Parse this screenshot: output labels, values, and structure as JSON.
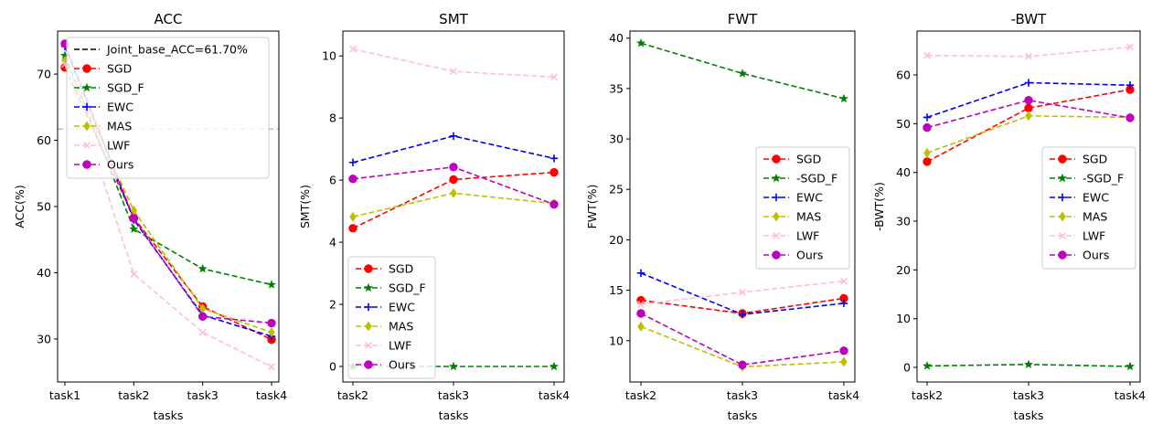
{
  "chart_data": [
    {
      "type": "line",
      "title": "ACC",
      "xlabel": "tasks",
      "ylabel": "ACC(%)",
      "categories": [
        "task1",
        "task2",
        "task3",
        "task4"
      ],
      "ylim": [
        23.5,
        76.5
      ],
      "yticks": [
        30,
        40,
        50,
        60,
        70
      ],
      "grid": false,
      "legend_position": "upper-right",
      "reference_line": {
        "label": "Joint_base_ACC=61.70%",
        "value": 61.7,
        "color": "#bbbbbb",
        "legend_color": "#000000"
      },
      "series": [
        {
          "name": "SGD",
          "color": "#ff0000",
          "marker": "circle",
          "values": [
            71.0,
            48.3,
            34.9,
            29.9
          ]
        },
        {
          "name": "SGD_F",
          "color": "#008000",
          "marker": "star",
          "values": [
            72.8,
            46.6,
            40.6,
            38.2
          ]
        },
        {
          "name": "EWC",
          "color": "#0000ff",
          "marker": "plus",
          "values": [
            74.2,
            48.0,
            33.6,
            30.4
          ]
        },
        {
          "name": "MAS",
          "color": "#bfbf00",
          "marker": "diamond",
          "values": [
            72.0,
            49.4,
            34.6,
            31.0
          ]
        },
        {
          "name": "LWF",
          "color": "#ffc0cb",
          "marker": "x",
          "values": [
            71.5,
            39.8,
            31.0,
            25.8
          ]
        },
        {
          "name": "Ours",
          "color": "#bf00bf",
          "marker": "circle",
          "values": [
            74.6,
            48.2,
            33.4,
            32.4
          ]
        }
      ]
    },
    {
      "type": "line",
      "title": "SMT",
      "xlabel": "tasks",
      "ylabel": "SMT(%)",
      "categories": [
        "task2",
        "task3",
        "task4"
      ],
      "ylim": [
        -0.5,
        10.8
      ],
      "yticks": [
        0,
        2,
        4,
        6,
        8,
        10
      ],
      "grid": false,
      "legend_position": "lower-left",
      "series": [
        {
          "name": "SGD",
          "color": "#ff0000",
          "marker": "circle",
          "values": [
            4.45,
            6.02,
            6.25
          ]
        },
        {
          "name": "SGD_F",
          "color": "#008000",
          "marker": "star",
          "values": [
            0.0,
            0.0,
            0.0
          ]
        },
        {
          "name": "EWC",
          "color": "#0000ff",
          "marker": "plus",
          "values": [
            6.57,
            7.42,
            6.7
          ]
        },
        {
          "name": "MAS",
          "color": "#bfbf00",
          "marker": "diamond",
          "values": [
            4.82,
            5.58,
            5.25
          ]
        },
        {
          "name": "LWF",
          "color": "#ffc0cb",
          "marker": "x",
          "values": [
            10.22,
            9.5,
            9.32
          ]
        },
        {
          "name": "Ours",
          "color": "#bf00bf",
          "marker": "circle",
          "values": [
            6.04,
            6.42,
            5.22
          ]
        }
      ]
    },
    {
      "type": "line",
      "title": "FWT",
      "xlabel": "tasks",
      "ylabel": "FWT(%)",
      "categories": [
        "task2",
        "task3",
        "task4"
      ],
      "ylim": [
        5.9,
        40.7
      ],
      "yticks": [
        10,
        15,
        20,
        25,
        30,
        35,
        40
      ],
      "grid": false,
      "legend_position": "center-right",
      "series": [
        {
          "name": "SGD",
          "color": "#ff0000",
          "marker": "circle",
          "values": [
            14.0,
            12.7,
            14.2
          ]
        },
        {
          "name": "-SGD_F",
          "color": "#008000",
          "marker": "star",
          "values": [
            39.5,
            36.5,
            34.0
          ]
        },
        {
          "name": "EWC",
          "color": "#0000ff",
          "marker": "plus",
          "values": [
            16.7,
            12.6,
            13.7
          ]
        },
        {
          "name": "MAS",
          "color": "#bfbf00",
          "marker": "diamond",
          "values": [
            11.4,
            7.4,
            7.9
          ]
        },
        {
          "name": "LWF",
          "color": "#ffc0cb",
          "marker": "x",
          "values": [
            13.6,
            14.8,
            15.9
          ]
        },
        {
          "name": "Ours",
          "color": "#bf00bf",
          "marker": "circle",
          "values": [
            12.7,
            7.6,
            9.0
          ]
        }
      ]
    },
    {
      "type": "line",
      "title": "-BWT",
      "xlabel": "tasks",
      "ylabel": "-BWT(%)",
      "categories": [
        "task2",
        "task3",
        "task4"
      ],
      "ylim": [
        -3.0,
        69.0
      ],
      "yticks": [
        0,
        10,
        20,
        30,
        40,
        50,
        60
      ],
      "grid": false,
      "legend_position": "center-right",
      "series": [
        {
          "name": "SGD",
          "color": "#ff0000",
          "marker": "circle",
          "values": [
            42.2,
            53.2,
            57.0
          ]
        },
        {
          "name": "-SGD_F",
          "color": "#008000",
          "marker": "star",
          "values": [
            0.3,
            0.6,
            0.2
          ]
        },
        {
          "name": "EWC",
          "color": "#0000ff",
          "marker": "plus",
          "values": [
            51.3,
            58.4,
            57.9
          ]
        },
        {
          "name": "MAS",
          "color": "#bfbf00",
          "marker": "diamond",
          "values": [
            44.0,
            51.6,
            51.3
          ]
        },
        {
          "name": "LWF",
          "color": "#ffc0cb",
          "marker": "x",
          "values": [
            64.0,
            63.8,
            65.7
          ]
        },
        {
          "name": "Ours",
          "color": "#bf00bf",
          "marker": "circle",
          "values": [
            49.2,
            54.8,
            51.2
          ]
        }
      ]
    }
  ]
}
